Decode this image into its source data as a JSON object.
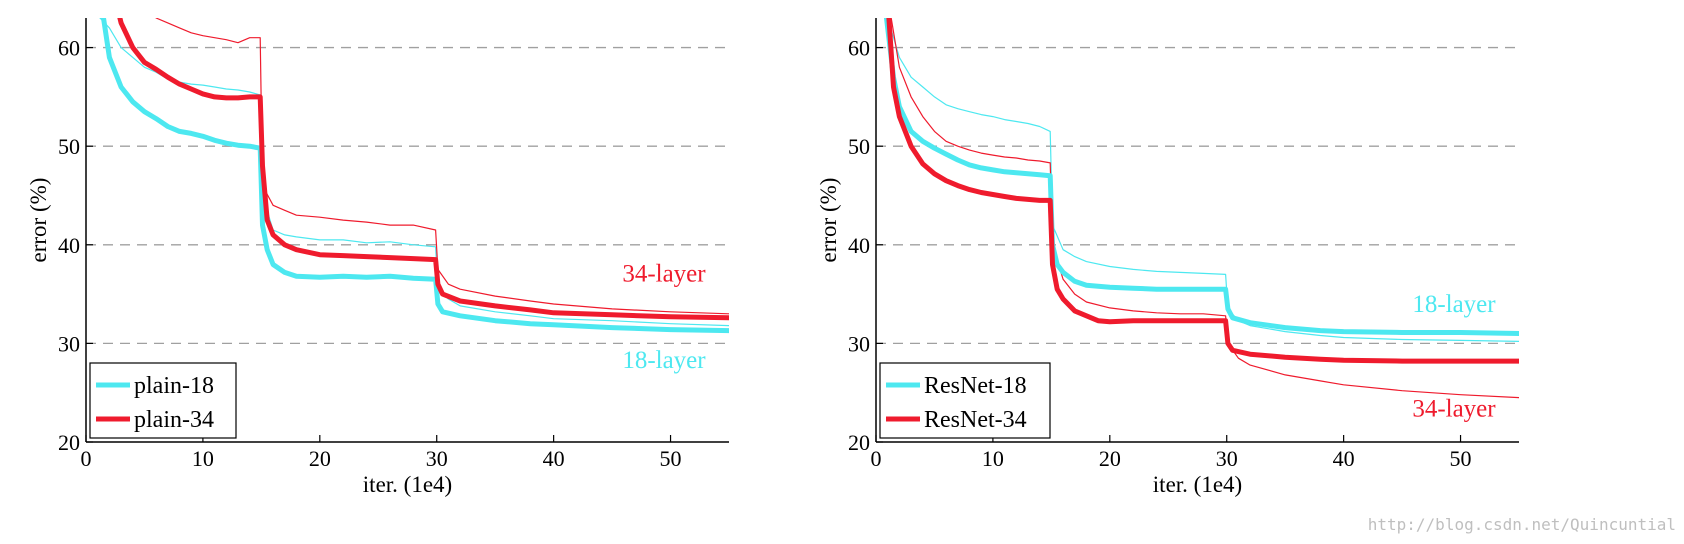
{
  "watermark": "http://blog.csdn.net/Quincuntial",
  "colors": {
    "cyan": "#4de8f0",
    "red": "#ef1b2d",
    "grid": "#a0a0a0"
  },
  "chart_data": [
    {
      "type": "line",
      "title": "",
      "xlabel": "iter. (1e4)",
      "ylabel": "error (%)",
      "xlim": [
        0,
        55
      ],
      "ylim": [
        20,
        63
      ],
      "xticks": [
        "0",
        "10",
        "20",
        "30",
        "40",
        "50"
      ],
      "yticks": [
        "20",
        "30",
        "40",
        "50",
        "60"
      ],
      "grid": "horizontal dashed",
      "legend_position": "bottom-left",
      "legend": [
        "plain-18",
        "plain-34"
      ],
      "annotations": [
        {
          "text": "34-layer",
          "color": "#ef1b2d",
          "x": 53,
          "y": 36.3
        },
        {
          "text": "18-layer",
          "color": "#4de8f0",
          "x": 53,
          "y": 27.5
        }
      ],
      "series": [
        {
          "name": "plain-18",
          "color": "#4de8f0",
          "kind": "val",
          "x": [
            1.5,
            2,
            3,
            4,
            5,
            6,
            7,
            8,
            9,
            10,
            11,
            12,
            13,
            14,
            14.9,
            15.1,
            15.5,
            16,
            17,
            18,
            20,
            22,
            24,
            26,
            28,
            29.9,
            30.1,
            30.5,
            32,
            35,
            38,
            40,
            45,
            50,
            55
          ],
          "y": [
            63,
            59,
            56,
            54.5,
            53.5,
            52.8,
            52,
            51.5,
            51.3,
            51,
            50.6,
            50.3,
            50.1,
            50.0,
            49.8,
            42,
            39.5,
            38,
            37.2,
            36.8,
            36.7,
            36.8,
            36.7,
            36.8,
            36.6,
            36.5,
            34,
            33.2,
            32.8,
            32.3,
            32.0,
            31.9,
            31.6,
            31.4,
            31.3
          ]
        },
        {
          "name": "plain-34",
          "color": "#ef1b2d",
          "kind": "val",
          "x": [
            2.9,
            3,
            4,
            5,
            6,
            7,
            8,
            9,
            10,
            11,
            12,
            13,
            14,
            14.9,
            15.1,
            15.5,
            16,
            17,
            18,
            20,
            22,
            24,
            26,
            28,
            29.9,
            30.1,
            30.5,
            32,
            35,
            38,
            40,
            45,
            50,
            55
          ],
          "y": [
            63,
            62.5,
            60,
            58.5,
            57.8,
            57,
            56.3,
            55.8,
            55.3,
            55,
            54.9,
            54.9,
            55.0,
            55.0,
            48,
            42.5,
            41,
            40,
            39.5,
            39,
            38.9,
            38.8,
            38.7,
            38.6,
            38.5,
            36,
            35,
            34.3,
            33.8,
            33.4,
            33.1,
            32.9,
            32.7,
            32.6
          ]
        },
        {
          "name": "plain-18 (train)",
          "color": "#4de8f0",
          "kind": "train",
          "x": [
            1.2,
            2,
            3,
            4,
            5,
            6,
            7,
            8,
            9,
            10,
            11,
            12,
            13,
            14,
            14.9,
            15.1,
            16,
            17,
            18,
            20,
            22,
            24,
            26,
            28,
            29.9,
            30.1,
            31,
            32,
            35,
            38,
            40,
            45,
            50,
            55
          ],
          "y": [
            63,
            62,
            60,
            59,
            58,
            57.5,
            56.8,
            56.5,
            56.3,
            56.2,
            56,
            55.8,
            55.7,
            55.5,
            55.2,
            45,
            41.5,
            41,
            40.8,
            40.5,
            40.5,
            40.2,
            40.3,
            40,
            39.8,
            35.5,
            34.5,
            33.8,
            33.2,
            32.8,
            32.5,
            32.3,
            32.0,
            31.8
          ]
        },
        {
          "name": "plain-34 (train)",
          "color": "#ef1b2d",
          "kind": "train",
          "x": [
            6,
            7,
            8,
            9,
            10,
            11,
            12,
            13,
            14,
            14.9,
            15.1,
            16,
            17,
            18,
            20,
            22,
            24,
            26,
            28,
            29.9,
            30.1,
            31,
            32,
            35,
            38,
            40,
            45,
            50,
            55
          ],
          "y": [
            63,
            62.5,
            62,
            61.5,
            61.2,
            61,
            60.8,
            60.5,
            61,
            61,
            46,
            44,
            43.5,
            43,
            42.8,
            42.5,
            42.3,
            42,
            42,
            41.5,
            37.5,
            36,
            35.5,
            34.8,
            34.3,
            34,
            33.5,
            33.2,
            33.0
          ]
        }
      ]
    },
    {
      "type": "line",
      "title": "",
      "xlabel": "iter. (1e4)",
      "ylabel": "error (%)",
      "xlim": [
        0,
        55
      ],
      "ylim": [
        20,
        63
      ],
      "xticks": [
        "0",
        "10",
        "20",
        "30",
        "40",
        "50"
      ],
      "yticks": [
        "20",
        "30",
        "40",
        "50",
        "60"
      ],
      "grid": "horizontal dashed",
      "legend_position": "bottom-left",
      "legend": [
        "ResNet-18",
        "ResNet-34"
      ],
      "annotations": [
        {
          "text": "18-layer",
          "color": "#4de8f0",
          "x": 53,
          "y": 33.2
        },
        {
          "text": "34-layer",
          "color": "#ef1b2d",
          "x": 53,
          "y": 22.6
        }
      ],
      "series": [
        {
          "name": "ResNet-18",
          "color": "#4de8f0",
          "kind": "val",
          "x": [
            0.9,
            1.5,
            2,
            3,
            4,
            5,
            6,
            7,
            8,
            9,
            10,
            11,
            12,
            13,
            14,
            14.9,
            15.1,
            15.5,
            16,
            17,
            18,
            20,
            22,
            24,
            26,
            28,
            29.9,
            30.1,
            30.5,
            32,
            35,
            38,
            40,
            45,
            50,
            55
          ],
          "y": [
            63,
            57,
            54,
            51.5,
            50.5,
            49.8,
            49.2,
            48.6,
            48.1,
            47.8,
            47.6,
            47.4,
            47.3,
            47.2,
            47.1,
            47.0,
            40,
            38,
            37.2,
            36.3,
            35.9,
            35.7,
            35.6,
            35.5,
            35.5,
            35.5,
            35.5,
            33.5,
            32.6,
            32.1,
            31.6,
            31.3,
            31.2,
            31.1,
            31.1,
            31.0
          ]
        },
        {
          "name": "ResNet-34",
          "color": "#ef1b2d",
          "kind": "val",
          "x": [
            1.1,
            1.5,
            2,
            3,
            4,
            5,
            6,
            7,
            8,
            9,
            10,
            11,
            12,
            13,
            14,
            14.9,
            15.1,
            15.5,
            16,
            17,
            18,
            19,
            20,
            22,
            24,
            26,
            28,
            29.9,
            30.1,
            30.5,
            32,
            35,
            38,
            40,
            45,
            50,
            55
          ],
          "y": [
            63,
            56,
            53,
            50,
            48.2,
            47.2,
            46.5,
            46,
            45.6,
            45.3,
            45.1,
            44.9,
            44.7,
            44.6,
            44.5,
            44.5,
            38,
            35.5,
            34.5,
            33.3,
            32.8,
            32.3,
            32.2,
            32.3,
            32.3,
            32.3,
            32.3,
            32.3,
            30,
            29.3,
            28.9,
            28.6,
            28.4,
            28.3,
            28.2,
            28.2,
            28.2
          ]
        },
        {
          "name": "ResNet-18 (train)",
          "color": "#4de8f0",
          "kind": "train",
          "x": [
            1.0,
            2,
            3,
            4,
            5,
            6,
            7,
            8,
            9,
            10,
            11,
            12,
            13,
            14,
            14.9,
            15.1,
            16,
            17,
            18,
            20,
            22,
            24,
            26,
            28,
            29.9,
            30.1,
            31,
            32,
            35,
            38,
            40,
            45,
            50,
            55
          ],
          "y": [
            63,
            59,
            57,
            56,
            55,
            54.2,
            53.8,
            53.5,
            53.2,
            53,
            52.7,
            52.5,
            52.3,
            52,
            51.5,
            42,
            39.5,
            38.8,
            38.3,
            37.8,
            37.5,
            37.3,
            37.2,
            37.1,
            37,
            33.5,
            32.3,
            31.8,
            31.2,
            30.8,
            30.6,
            30.4,
            30.3,
            30.2
          ]
        },
        {
          "name": "ResNet-34 (train)",
          "color": "#ef1b2d",
          "kind": "train",
          "x": [
            1.3,
            2,
            3,
            4,
            5,
            6,
            7,
            8,
            9,
            10,
            11,
            12,
            13,
            14,
            14.9,
            15.1,
            16,
            17,
            18,
            20,
            22,
            24,
            26,
            28,
            29.9,
            30.1,
            31,
            32,
            35,
            38,
            40,
            45,
            50,
            55
          ],
          "y": [
            63,
            58,
            55,
            53,
            51.5,
            50.5,
            50,
            49.6,
            49.3,
            49.1,
            48.9,
            48.8,
            48.6,
            48.5,
            48.3,
            40,
            36.5,
            35,
            34.2,
            33.6,
            33.3,
            33.1,
            33,
            33,
            32.8,
            30,
            28.5,
            27.8,
            26.8,
            26.2,
            25.8,
            25.2,
            24.8,
            24.5
          ]
        }
      ]
    }
  ]
}
